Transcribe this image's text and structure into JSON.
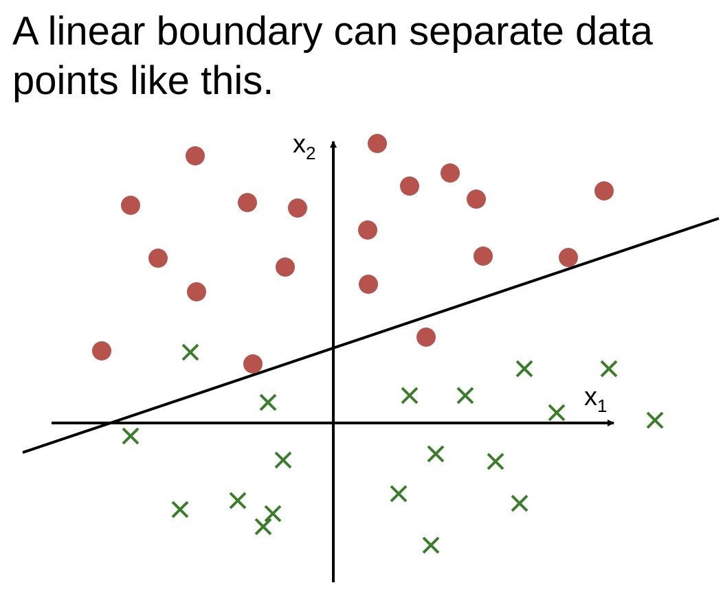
{
  "title": "A linear boundary can separate data points like this.",
  "axes": {
    "x_label": "x",
    "x_subscript": "1",
    "y_label": "x",
    "y_subscript": "2"
  },
  "colors": {
    "circle_class": "#b5534c",
    "cross_class": "#3c7d2c",
    "axis": "#000000",
    "boundary": "#000000"
  }
}
